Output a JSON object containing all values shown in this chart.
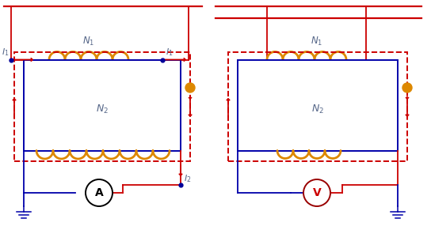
{
  "bg_color": "#ffffff",
  "red": "#cc0000",
  "blue": "#0000aa",
  "orange": "#dd8800",
  "gray_blue": "#556688",
  "lw_thick": 1.6,
  "lw_med": 1.3,
  "lw_thin": 1.1
}
